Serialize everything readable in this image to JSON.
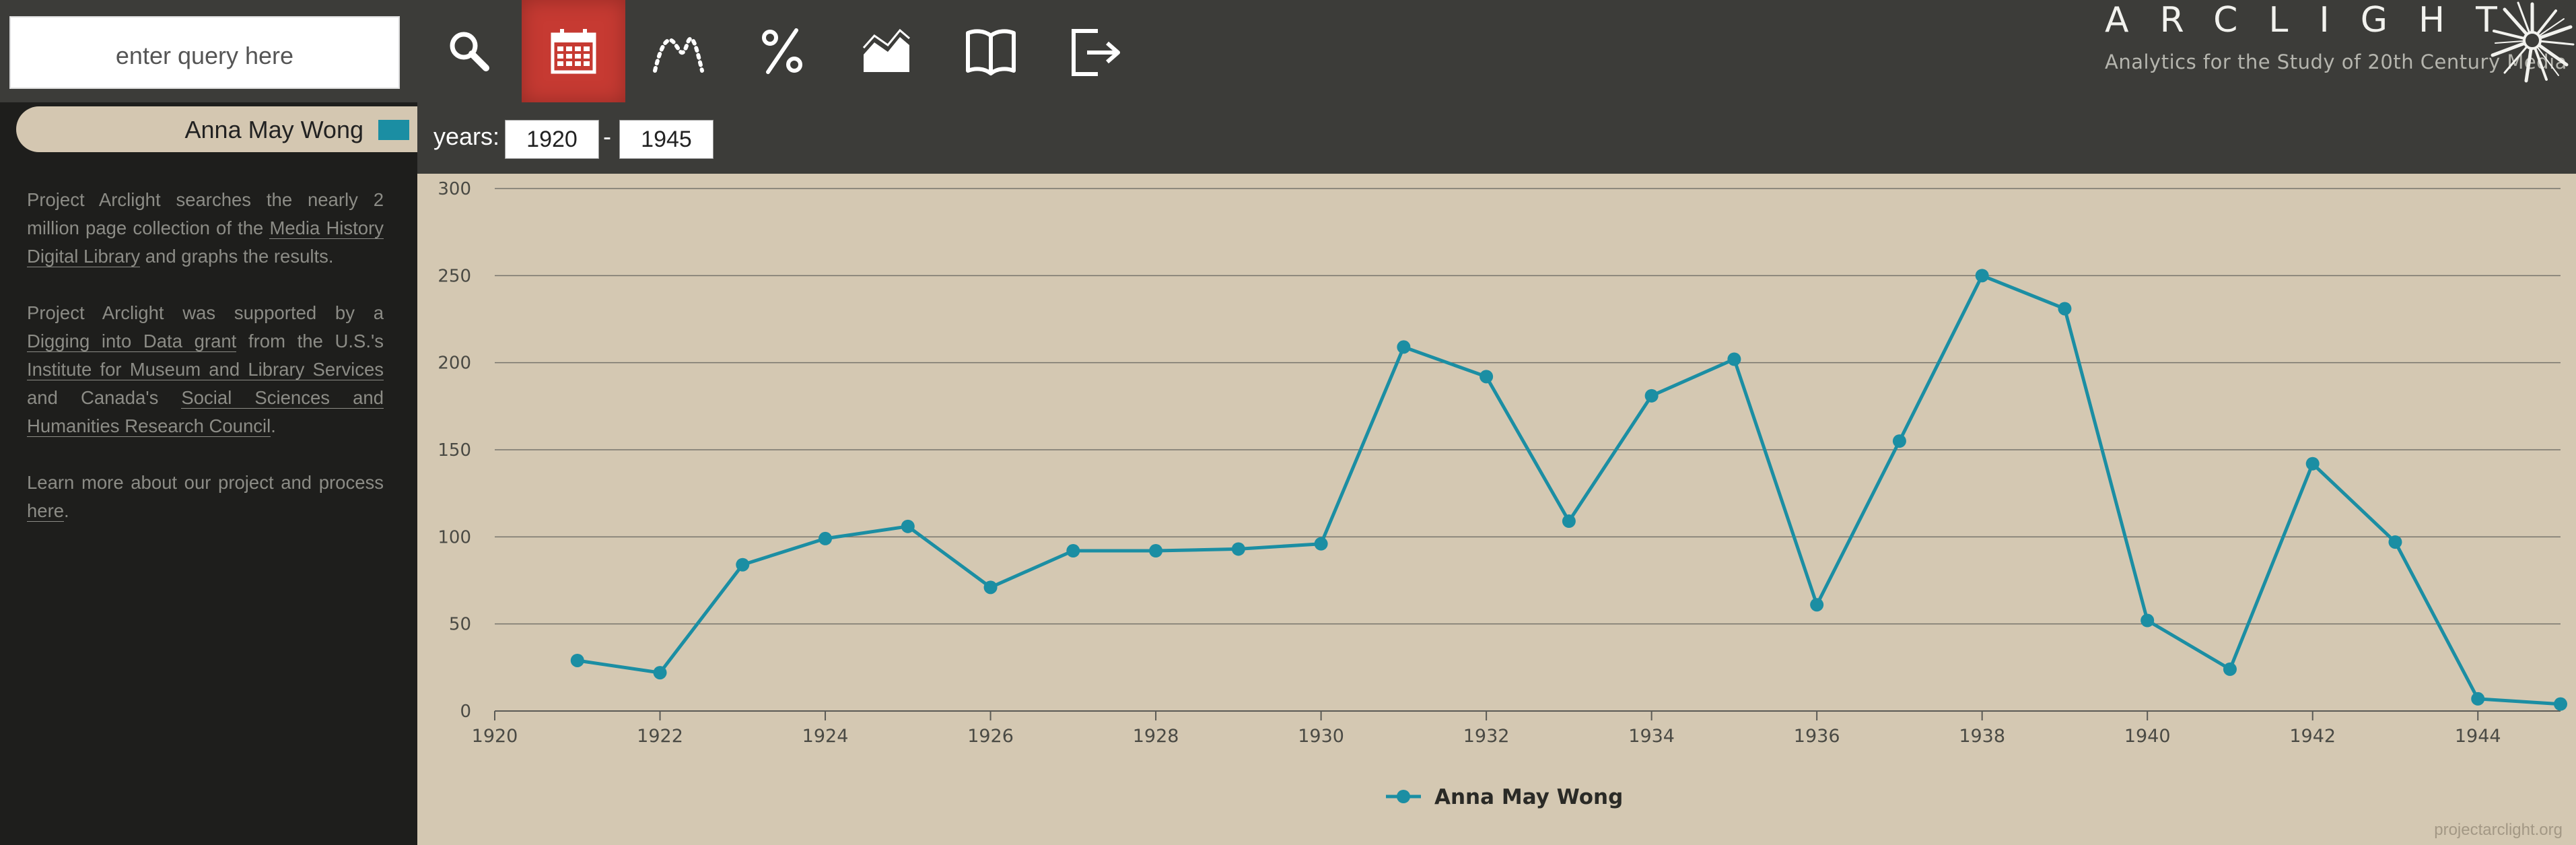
{
  "search": {
    "placeholder": "enter query here"
  },
  "toolbar": {
    "buttons": [
      {
        "name": "search",
        "icon": "search-icon",
        "active": false
      },
      {
        "name": "timeline",
        "icon": "calendar-icon",
        "active": true
      },
      {
        "name": "scatter",
        "icon": "dotted-curve-icon",
        "active": false
      },
      {
        "name": "percent",
        "icon": "percent-icon",
        "active": false
      },
      {
        "name": "area",
        "icon": "area-chart-icon",
        "active": false
      },
      {
        "name": "read",
        "icon": "open-book-icon",
        "active": false
      },
      {
        "name": "export",
        "icon": "export-icon",
        "active": false
      }
    ],
    "active_color": "#c63a32"
  },
  "logo": {
    "title": "ARCLIGHT",
    "subtitle": "Analytics for the Study of 20th Century Media"
  },
  "years": {
    "label": "years:",
    "start": "1920",
    "separator": "-",
    "end": "1945"
  },
  "sidebar": {
    "query_term": "Anna May Wong",
    "query_color": "#1b8ea3",
    "about": {
      "p1_a": "Project Arclight searches the nearly 2 million page collection of the ",
      "p1_link": "Media History Digital Library",
      "p1_b": " and graphs the results.",
      "p2_a": "Project Arclight was supported by a ",
      "p2_link1": "Digging into Data grant",
      "p2_b": " from the U.S.'s ",
      "p2_link2": "Institute for Museum and Library Services",
      "p2_c": " and Canada's ",
      "p2_link3": "Social Sciences and Humanities Research Council",
      "p2_d": ".",
      "p3_a": "Learn more about our project and process ",
      "p3_link": "here",
      "p3_b": "."
    }
  },
  "credit": "projectarclight.org",
  "chart_data": {
    "type": "line",
    "series": [
      {
        "name": "Anna May Wong",
        "color": "#1b8ea3",
        "x": [
          1921,
          1922,
          1923,
          1924,
          1925,
          1926,
          1927,
          1928,
          1929,
          1930,
          1931,
          1932,
          1933,
          1934,
          1935,
          1936,
          1937,
          1938,
          1939,
          1940,
          1941,
          1942,
          1943,
          1944,
          1945
        ],
        "y": [
          29,
          22,
          84,
          99,
          106,
          71,
          92,
          92,
          93,
          96,
          209,
          192,
          109,
          181,
          202,
          61,
          155,
          250,
          231,
          52,
          24,
          142,
          97,
          7,
          4
        ]
      }
    ],
    "xlim": [
      1920,
      1945
    ],
    "ylim": [
      0,
      300
    ],
    "xticks": [
      "1920",
      "1922",
      "1924",
      "1926",
      "1928",
      "1930",
      "1932",
      "1934",
      "1936",
      "1938",
      "1940",
      "1942",
      "1944"
    ],
    "yticks": [
      "0",
      "50",
      "100",
      "150",
      "200",
      "250",
      "300"
    ],
    "grid": true,
    "legend_position": "bottom-center"
  }
}
